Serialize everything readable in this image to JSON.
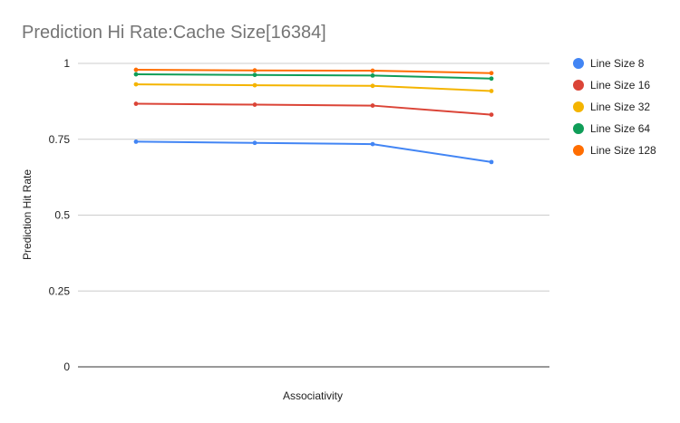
{
  "chart_data": {
    "type": "line",
    "title": "Prediction Hi Rate:Cache Size[16384]",
    "xlabel": "Associativity",
    "ylabel": "Prediction Hit Rate",
    "ylim": [
      0,
      1
    ],
    "yticks": [
      0,
      0.25,
      0.5,
      0.75,
      1
    ],
    "ytick_labels": [
      "0",
      "0.25",
      "0.5",
      "0.75",
      "1"
    ],
    "x": [
      1,
      2,
      3,
      4
    ],
    "grid": true,
    "legend": "right",
    "series": [
      {
        "name": "Line Size 8",
        "color": "#4285f4",
        "values": [
          0.742,
          0.738,
          0.734,
          0.675
        ]
      },
      {
        "name": "Line Size 16",
        "color": "#db4437",
        "values": [
          0.867,
          0.864,
          0.861,
          0.831
        ]
      },
      {
        "name": "Line Size 32",
        "color": "#f4b400",
        "values": [
          0.931,
          0.928,
          0.926,
          0.909
        ]
      },
      {
        "name": "Line Size 64",
        "color": "#0f9d58",
        "values": [
          0.964,
          0.962,
          0.96,
          0.95
        ]
      },
      {
        "name": "Line Size 128",
        "color": "#ff6d01",
        "values": [
          0.979,
          0.977,
          0.976,
          0.968
        ]
      }
    ]
  }
}
